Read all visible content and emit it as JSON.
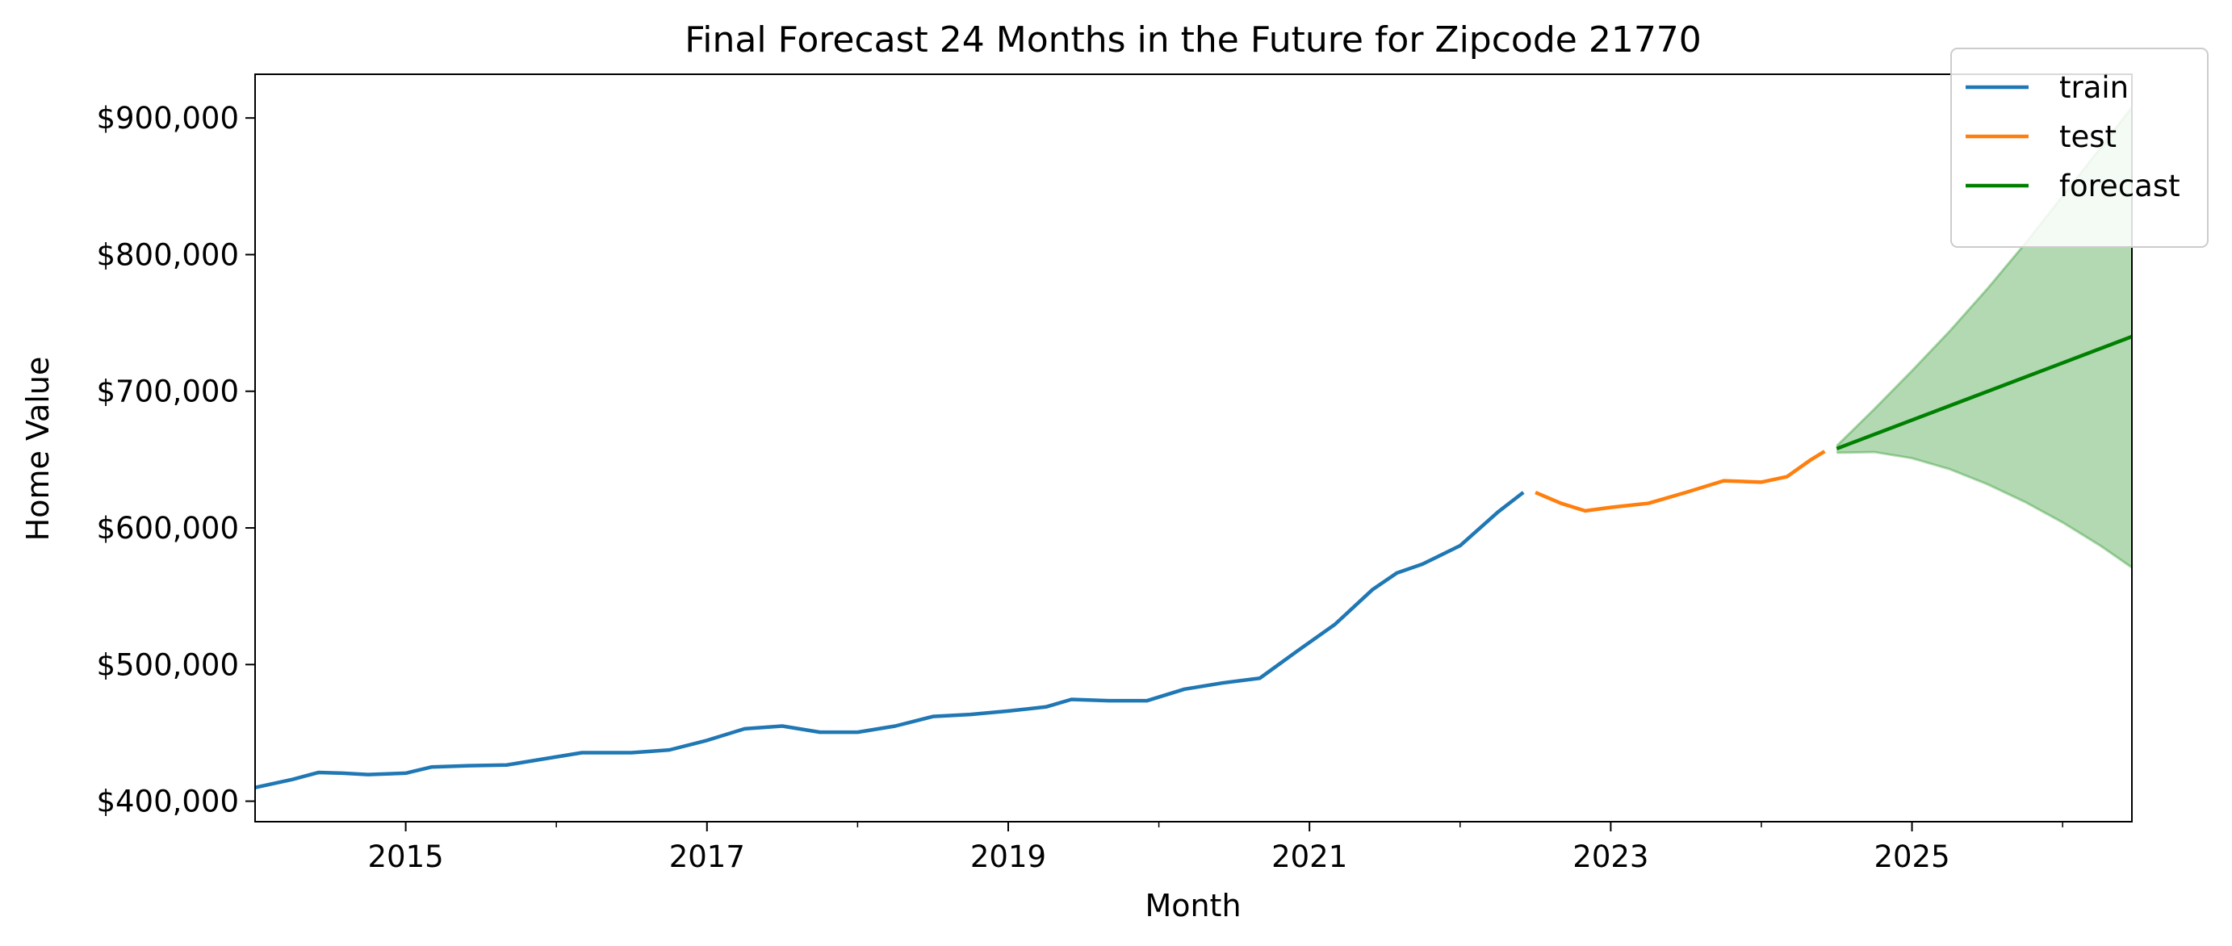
{
  "chart_data": {
    "type": "line",
    "title": "Final Forecast 24 Months in the Future for Zipcode 21770",
    "xlabel": "Month",
    "ylabel": "Home Value",
    "xlim": [
      2014.0,
      2026.46
    ],
    "ylim": [
      385000,
      932000
    ],
    "x_ticks": [
      {
        "value": 2015,
        "label": "2015"
      },
      {
        "value": 2017,
        "label": "2017"
      },
      {
        "value": 2019,
        "label": "2019"
      },
      {
        "value": 2021,
        "label": "2021"
      },
      {
        "value": 2023,
        "label": "2023"
      },
      {
        "value": 2025,
        "label": "2025"
      }
    ],
    "x_minor_ticks": [
      2016,
      2018,
      2020,
      2022,
      2024,
      2026
    ],
    "y_ticks": [
      {
        "value": 400000,
        "label": "$400,000"
      },
      {
        "value": 500000,
        "label": "$500,000"
      },
      {
        "value": 600000,
        "label": "$600,000"
      },
      {
        "value": 700000,
        "label": "$700,000"
      },
      {
        "value": 800000,
        "label": "$800,000"
      },
      {
        "value": 900000,
        "label": "$900,000"
      }
    ],
    "grid": false,
    "legend_position": "top-right",
    "series": [
      {
        "name": "train",
        "color": "#1f77b4",
        "x": [
          2014.0,
          2014.25,
          2014.42,
          2014.58,
          2014.75,
          2015.0,
          2015.17,
          2015.42,
          2015.67,
          2015.92,
          2016.17,
          2016.5,
          2016.75,
          2017.0,
          2017.25,
          2017.5,
          2017.75,
          2018.0,
          2018.25,
          2018.5,
          2018.75,
          2019.0,
          2019.25,
          2019.42,
          2019.67,
          2019.92,
          2020.17,
          2020.42,
          2020.67,
          2020.92,
          2021.17,
          2021.42,
          2021.58,
          2021.75,
          2022.0,
          2022.25,
          2022.42
        ],
        "y": [
          410000,
          416000,
          421000,
          420500,
          419500,
          420500,
          425000,
          426000,
          426500,
          431000,
          435500,
          435500,
          437500,
          444500,
          453000,
          455000,
          450500,
          450500,
          455000,
          462000,
          463500,
          466000,
          469000,
          474500,
          473500,
          473500,
          482000,
          486500,
          490000,
          510000,
          529500,
          555000,
          567000,
          573500,
          587000,
          611500,
          626000
        ]
      },
      {
        "name": "test",
        "color": "#ff7f0e",
        "x": [
          2022.5,
          2022.67,
          2022.83,
          2023.0,
          2023.25,
          2023.5,
          2023.75,
          2024.0,
          2024.17,
          2024.33,
          2024.42
        ],
        "y": [
          626000,
          618000,
          612500,
          615000,
          618000,
          626000,
          634500,
          633500,
          637500,
          650000,
          656000
        ]
      },
      {
        "name": "forecast",
        "color": "#008000",
        "x": [
          2024.5,
          2026.46
        ],
        "y": [
          658000,
          740000
        ]
      }
    ],
    "confidence_interval": {
      "color": "#008000",
      "x": [
        2024.5,
        2024.75,
        2025.0,
        2025.25,
        2025.5,
        2025.75,
        2026.0,
        2026.25,
        2026.46
      ],
      "lower": [
        655000,
        655500,
        651000,
        643000,
        632000,
        619000,
        604000,
        587000,
        571000
      ],
      "upper": [
        660000,
        687000,
        715000,
        744000,
        775000,
        808000,
        843000,
        878000,
        908000
      ]
    }
  }
}
